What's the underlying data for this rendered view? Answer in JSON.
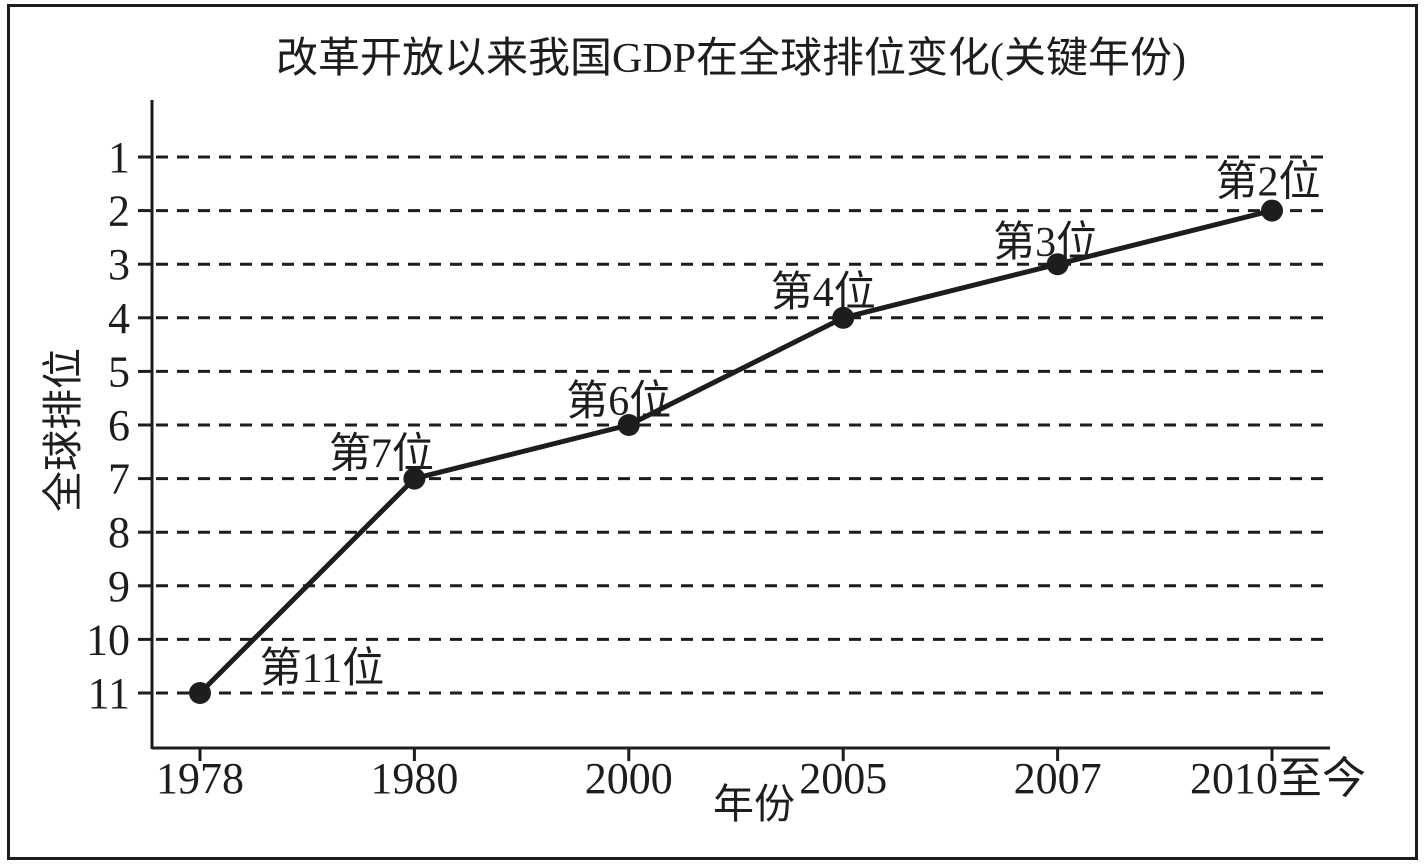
{
  "chart_data": {
    "type": "line",
    "title": "改革开放以来我国GDP在全球排位变化(关键年份)",
    "xlabel": "年份",
    "ylabel": "全球排位",
    "categories": [
      "1978",
      "1980",
      "2000",
      "2005",
      "2007",
      "2010至今"
    ],
    "values": [
      11,
      7,
      6,
      4,
      3,
      2
    ],
    "point_labels": [
      "第11位",
      "第7位",
      "第6位",
      "第4位",
      "第3位",
      "第2位"
    ],
    "y_ticks": [
      1,
      2,
      3,
      4,
      5,
      6,
      7,
      8,
      9,
      10,
      11
    ],
    "ylim": [
      1,
      11
    ],
    "y_axis_inverted": true,
    "grid": "dashed-horizontal",
    "legend": "none",
    "line_color": "#1d1d1d",
    "marker_color": "#1d1d1d",
    "background_color": "#ffffff"
  }
}
